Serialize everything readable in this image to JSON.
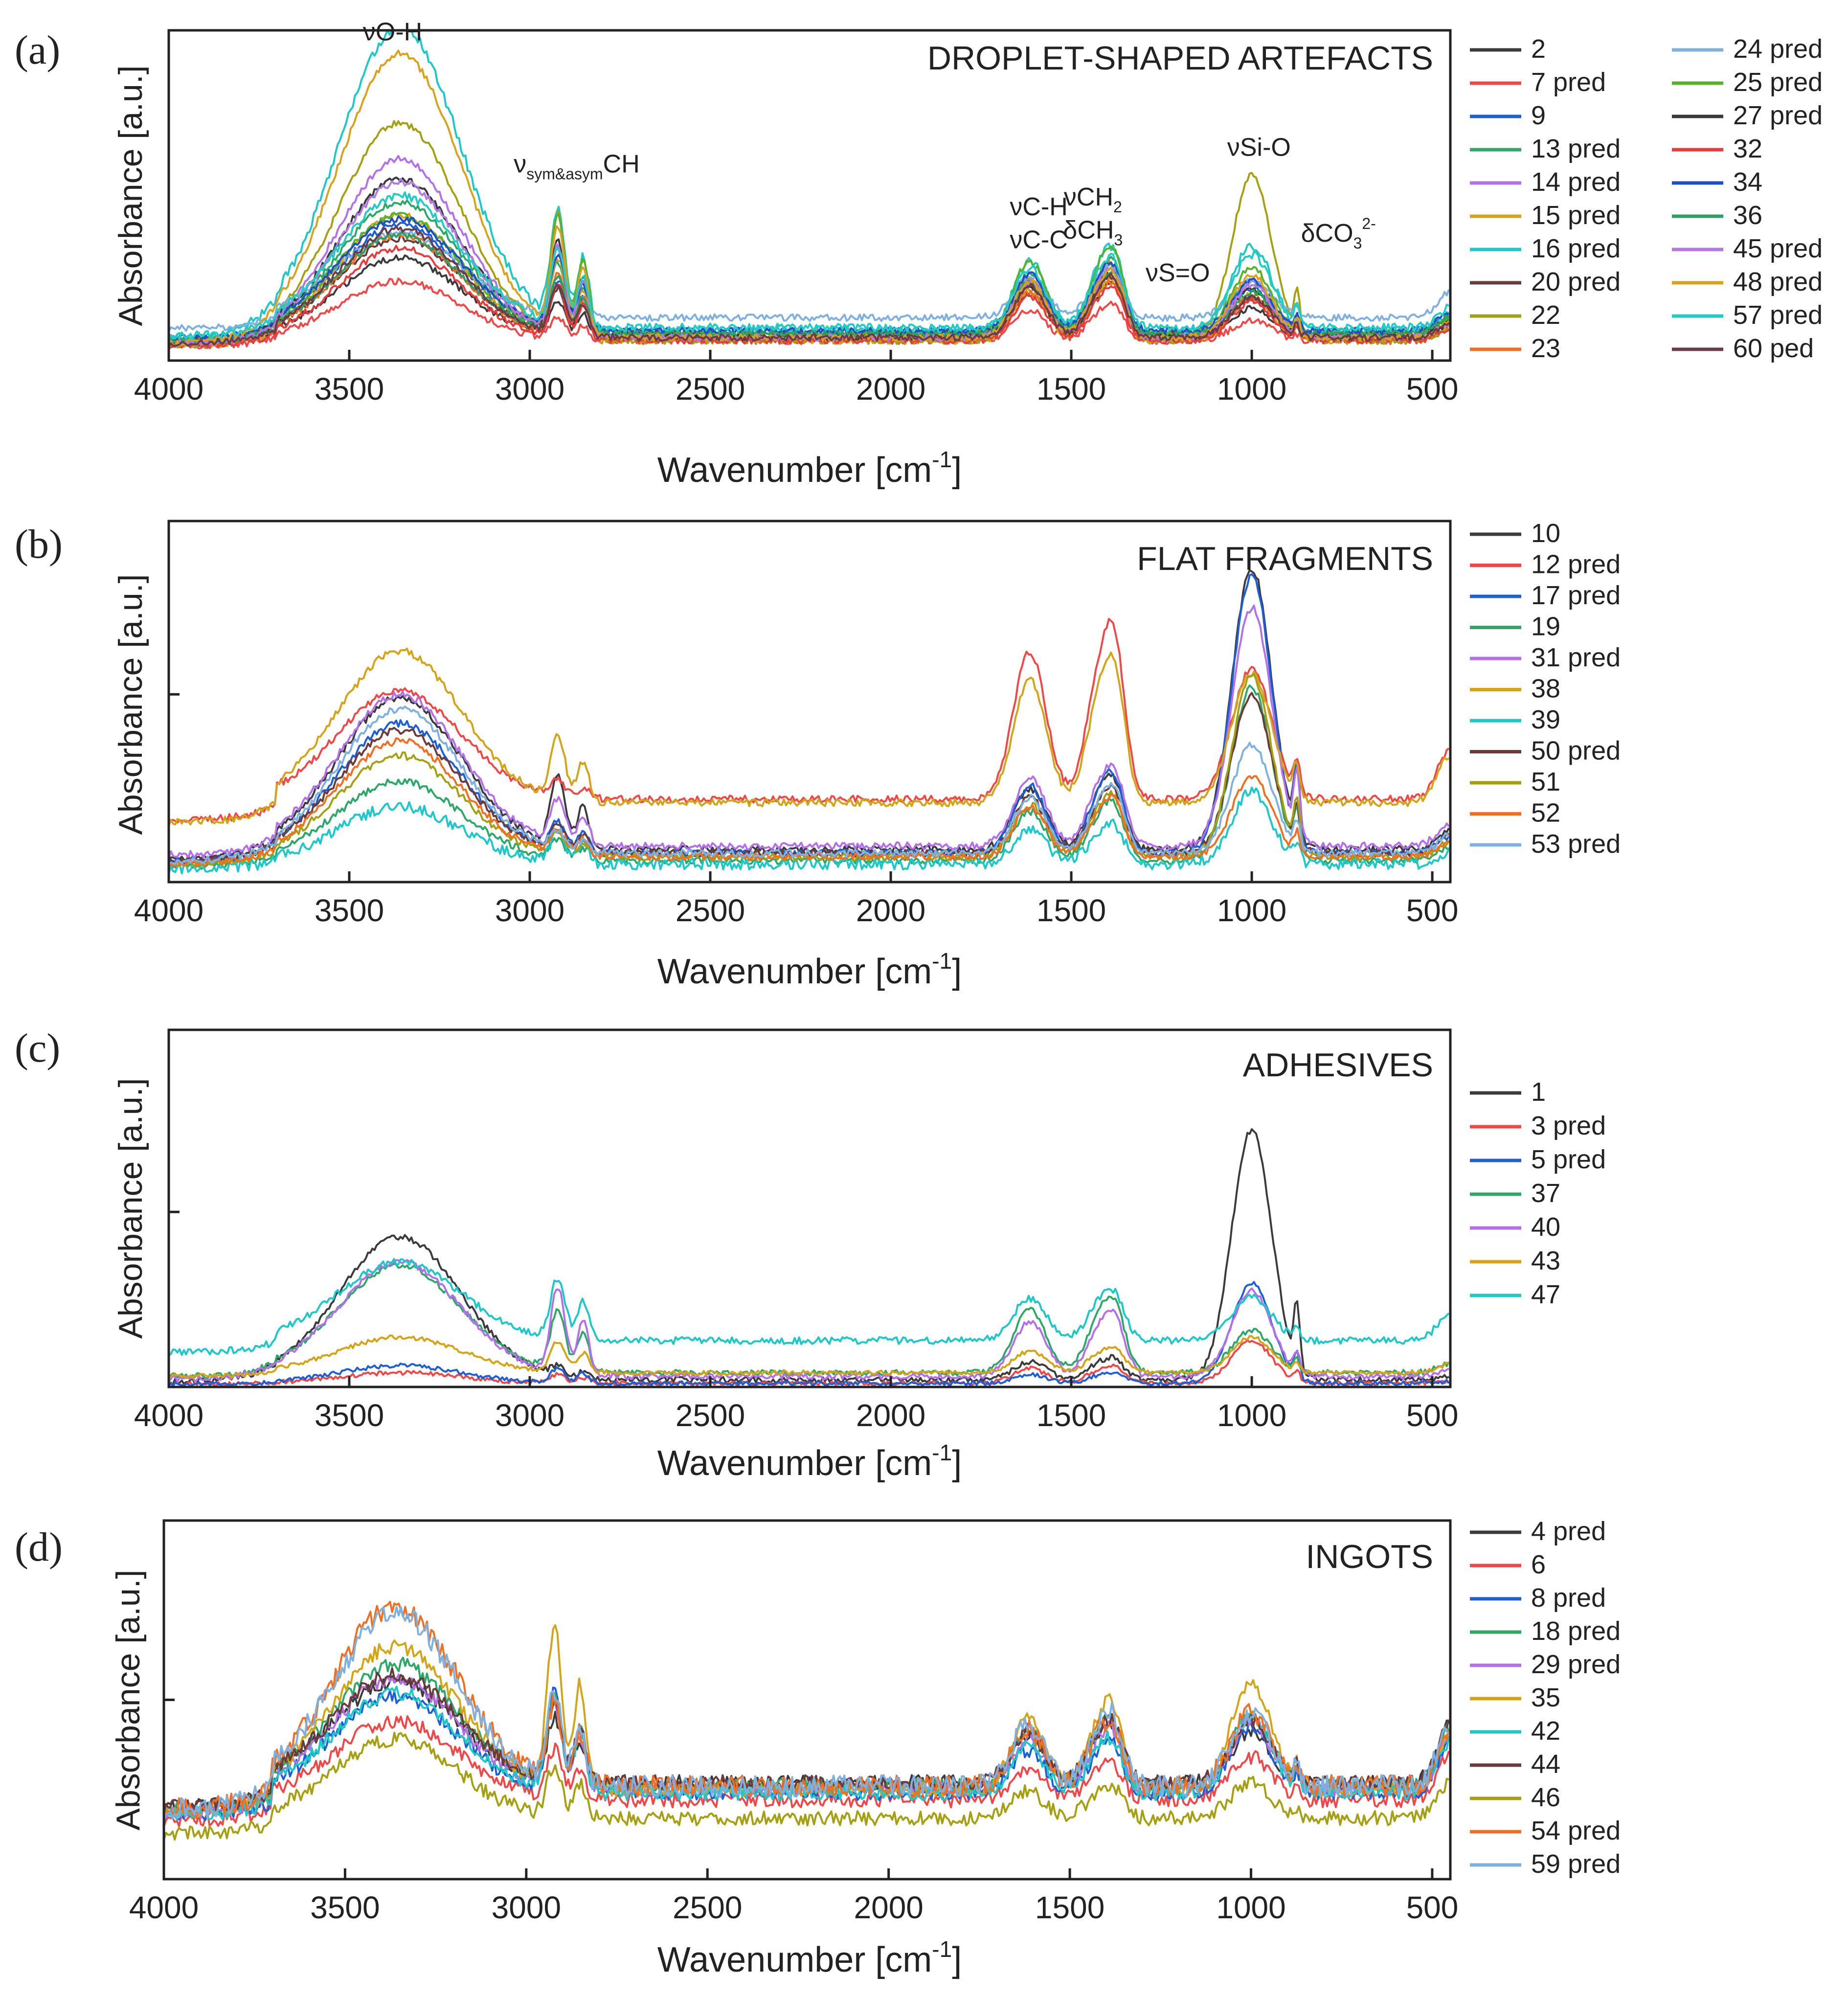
{
  "figure": {
    "background": "#ffffff"
  },
  "palette": [
    "#3b3b3b",
    "#f04848",
    "#1e5fd8",
    "#2ea868",
    "#b470e8",
    "#d4a418",
    "#1ec8c8",
    "#6b3a3a",
    "#a4a012",
    "#f06f22",
    "#7fb0e0",
    "#56b22c",
    "#38383a",
    "#e63c3c",
    "#1f4ec8",
    "#2ca060",
    "#b27ae0",
    "#d8a21c",
    "#24cbc2",
    "#6a3b48"
  ],
  "chart_data": [
    {
      "type": "line",
      "panel": "(a)",
      "title": "DROPLET-SHAPED ARTEFACTS",
      "xlabel": "Wavenumber [cm",
      "xlabel_sup": "-1",
      "xlabel_end": "]",
      "ylabel": "Absorbance [a.u.]",
      "xlim": [
        4000,
        450
      ],
      "ylim": [
        0,
        1
      ],
      "grid": false,
      "xticks": [
        {
          "v": 4000,
          "t": "4000"
        },
        {
          "v": 3500,
          "t": "3500"
        },
        {
          "v": 3000,
          "t": "3000"
        },
        {
          "v": 2500,
          "t": "2500"
        },
        {
          "v": 2000,
          "t": "2000"
        },
        {
          "v": 1500,
          "t": "1500"
        },
        {
          "v": 1000,
          "t": "1000"
        },
        {
          "v": 500,
          "t": "500"
        }
      ],
      "yticks": [],
      "legend": {
        "placement": "right",
        "columns": 2
      },
      "annotations": [
        {
          "id": "oh",
          "x": 3380,
          "y": 0.97,
          "parts": [
            {
              "t": "νO-H"
            }
          ]
        },
        {
          "id": "ch",
          "x": 2870,
          "y": 0.57,
          "parts": [
            {
              "t": "ν"
            },
            {
              "t": "sym&asym",
              "sub": true
            },
            {
              "t": "CH"
            }
          ]
        },
        {
          "id": "ch2",
          "x": 1590,
          "y": 0.44,
          "parts": [
            {
              "t": "νC-H"
            }
          ]
        },
        {
          "id": "cc",
          "x": 1590,
          "y": 0.34,
          "parts": [
            {
              "t": "νC-C"
            }
          ]
        },
        {
          "id": "ch2b",
          "x": 1440,
          "y": 0.47,
          "parts": [
            {
              "t": "νCH"
            },
            {
              "t": "2",
              "sub": true
            }
          ]
        },
        {
          "id": "ch3",
          "x": 1440,
          "y": 0.37,
          "parts": [
            {
              "t": "δCH"
            },
            {
              "t": "3",
              "sub": true
            }
          ]
        },
        {
          "id": "so",
          "x": 1205,
          "y": 0.24,
          "parts": [
            {
              "t": "νS=O"
            }
          ]
        },
        {
          "id": "sio",
          "x": 980,
          "y": 0.62,
          "parts": [
            {
              "t": "νSi-O"
            }
          ]
        },
        {
          "id": "co3",
          "x": 760,
          "y": 0.36,
          "parts": [
            {
              "t": "δCO"
            },
            {
              "t": "3",
              "sub": true
            },
            {
              "t": "2-",
              "sup": true
            }
          ]
        }
      ],
      "series": [
        {
          "name": "2",
          "base": 0.07,
          "oh": 0.24,
          "ch": 0.12,
          "amide": 0.16,
          "sio": 0.09,
          "noise": 0.01
        },
        {
          "name": "7 pred",
          "base": 0.06,
          "oh": 0.18,
          "ch": 0.08,
          "amide": 0.11,
          "sio": 0.06,
          "noise": 0.01
        },
        {
          "name": "9",
          "base": 0.09,
          "oh": 0.32,
          "ch": 0.17,
          "amide": 0.18,
          "sio": 0.13,
          "noise": 0.01
        },
        {
          "name": "13 pred",
          "base": 0.08,
          "oh": 0.4,
          "ch": 0.24,
          "amide": 0.22,
          "sio": 0.16,
          "noise": 0.01
        },
        {
          "name": "14 pred",
          "base": 0.07,
          "oh": 0.54,
          "ch": 0.3,
          "amide": 0.21,
          "sio": 0.17,
          "noise": 0.01
        },
        {
          "name": "15 pred",
          "base": 0.06,
          "oh": 0.38,
          "ch": 0.28,
          "amide": 0.18,
          "sio": 0.14,
          "noise": 0.01
        },
        {
          "name": "16 pred",
          "base": 0.09,
          "oh": 0.92,
          "ch": 0.39,
          "amide": 0.25,
          "sio": 0.26,
          "noise": 0.015
        },
        {
          "name": "20 pred",
          "base": 0.08,
          "oh": 0.29,
          "ch": 0.15,
          "amide": 0.17,
          "sio": 0.11,
          "noise": 0.01
        },
        {
          "name": "22",
          "base": 0.06,
          "oh": 0.66,
          "ch": 0.43,
          "amide": 0.23,
          "sio": 0.5,
          "noise": 0.01
        },
        {
          "name": "23",
          "base": 0.07,
          "oh": 0.31,
          "ch": 0.21,
          "amide": 0.16,
          "sio": 0.12,
          "noise": 0.01
        },
        {
          "name": "24 pred",
          "base": 0.13,
          "oh": 0.26,
          "ch": 0.1,
          "amide": 0.15,
          "sio": 0.11,
          "noise": 0.01
        },
        {
          "name": "25 pred",
          "base": 0.08,
          "oh": 0.36,
          "ch": 0.41,
          "amide": 0.26,
          "sio": 0.2,
          "noise": 0.01
        },
        {
          "name": "27 pred",
          "base": 0.07,
          "oh": 0.48,
          "ch": 0.33,
          "amide": 0.19,
          "sio": 0.15,
          "noise": 0.01
        },
        {
          "name": "32",
          "base": 0.06,
          "oh": 0.28,
          "ch": 0.19,
          "amide": 0.16,
          "sio": 0.12,
          "noise": 0.01
        },
        {
          "name": "34",
          "base": 0.09,
          "oh": 0.34,
          "ch": 0.26,
          "amide": 0.2,
          "sio": 0.15,
          "noise": 0.01
        },
        {
          "name": "36",
          "base": 0.08,
          "oh": 0.3,
          "ch": 0.2,
          "amide": 0.18,
          "sio": 0.13,
          "noise": 0.01
        },
        {
          "name": "45 pred",
          "base": 0.07,
          "oh": 0.47,
          "ch": 0.31,
          "amide": 0.2,
          "sio": 0.16,
          "noise": 0.01
        },
        {
          "name": "48 pred",
          "base": 0.07,
          "oh": 0.86,
          "ch": 0.36,
          "amide": 0.2,
          "sio": 0.19,
          "noise": 0.01
        },
        {
          "name": "57 pred",
          "base": 0.1,
          "oh": 0.4,
          "ch": 0.27,
          "amide": 0.21,
          "sio": 0.22,
          "noise": 0.012
        },
        {
          "name": "60 ped",
          "base": 0.07,
          "oh": 0.33,
          "ch": 0.18,
          "amide": 0.18,
          "sio": 0.12,
          "noise": 0.01
        }
      ]
    },
    {
      "type": "line",
      "panel": "(b)",
      "title": "FLAT FRAGMENTS",
      "xlabel": "Wavenumber [cm",
      "xlabel_sup": "-1",
      "xlabel_end": "]",
      "ylabel": "Absorbance [a.u.]",
      "xlim": [
        4000,
        450
      ],
      "ylim": [
        0,
        1
      ],
      "grid": false,
      "xticks": [
        {
          "v": 4000,
          "t": "4000"
        },
        {
          "v": 3500,
          "t": "3500"
        },
        {
          "v": 3000,
          "t": "3000"
        },
        {
          "v": 2500,
          "t": "2500"
        },
        {
          "v": 2000,
          "t": "2000"
        },
        {
          "v": 1500,
          "t": "1500"
        },
        {
          "v": 1000,
          "t": "1000"
        },
        {
          "v": 500,
          "t": "500"
        }
      ],
      "yticks": [
        {
          "v": 0.52,
          "t": ""
        }
      ],
      "legend": {
        "placement": "right",
        "columns": 1
      },
      "annotations": [],
      "series": [
        {
          "name": "10",
          "base": 0.09,
          "oh": 0.42,
          "ch": 0.22,
          "amide": 0.2,
          "sio": 0.78,
          "noise": 0.01
        },
        {
          "name": "12 pred",
          "base": 0.23,
          "oh": 0.3,
          "ch": 0.05,
          "amide": 0.48,
          "sio": 0.36,
          "noise": 0.01
        },
        {
          "name": "17 pred",
          "base": 0.08,
          "oh": 0.36,
          "ch": 0.09,
          "amide": 0.22,
          "sio": 0.77,
          "noise": 0.01
        },
        {
          "name": "19",
          "base": 0.06,
          "oh": 0.22,
          "ch": 0.06,
          "amide": 0.16,
          "sio": 0.48,
          "noise": 0.01
        },
        {
          "name": "31 pred",
          "base": 0.1,
          "oh": 0.42,
          "ch": 0.14,
          "amide": 0.22,
          "sio": 0.66,
          "noise": 0.01
        },
        {
          "name": "38",
          "base": 0.22,
          "oh": 0.42,
          "ch": 0.2,
          "amide": 0.4,
          "sio": 0.36,
          "noise": 0.01
        },
        {
          "name": "39",
          "base": 0.05,
          "oh": 0.16,
          "ch": 0.1,
          "amide": 0.11,
          "sio": 0.2,
          "noise": 0.015
        },
        {
          "name": "50 pred",
          "base": 0.08,
          "oh": 0.34,
          "ch": 0.08,
          "amide": 0.18,
          "sio": 0.44,
          "noise": 0.01
        },
        {
          "name": "51",
          "base": 0.07,
          "oh": 0.28,
          "ch": 0.07,
          "amide": 0.17,
          "sio": 0.5,
          "noise": 0.01
        },
        {
          "name": "52",
          "base": 0.07,
          "oh": 0.32,
          "ch": 0.08,
          "amide": 0.16,
          "sio": 0.22,
          "noise": 0.01
        },
        {
          "name": "53 pred",
          "base": 0.08,
          "oh": 0.4,
          "ch": 0.06,
          "amide": 0.18,
          "sio": 0.3,
          "noise": 0.01
        }
      ]
    },
    {
      "type": "line",
      "panel": "(c)",
      "title": "ADHESIVES",
      "xlabel": "Wavenumber [cm",
      "xlabel_sup": "-1",
      "xlabel_end": "]",
      "ylabel": "Absorbance [a.u.]",
      "xlim": [
        4000,
        450
      ],
      "ylim": [
        0,
        1
      ],
      "grid": false,
      "xticks": [
        {
          "v": 4000,
          "t": "4000"
        },
        {
          "v": 3500,
          "t": "3500"
        },
        {
          "v": 3000,
          "t": "3000"
        },
        {
          "v": 2500,
          "t": "2500"
        },
        {
          "v": 2000,
          "t": "2000"
        },
        {
          "v": 1500,
          "t": "1500"
        },
        {
          "v": 1000,
          "t": "1000"
        },
        {
          "v": 500,
          "t": "500"
        }
      ],
      "yticks": [
        {
          "v": 0.49,
          "t": ""
        }
      ],
      "legend": {
        "placement": "right",
        "columns": 1
      },
      "annotations": [],
      "series": [
        {
          "name": "1",
          "base": 0.02,
          "oh": 0.4,
          "ch": 0.03,
          "amide": 0.06,
          "sio": 0.7,
          "noise": 0.008
        },
        {
          "name": "3 pred",
          "base": 0.01,
          "oh": 0.03,
          "ch": 0.03,
          "amide": 0.05,
          "sio": 0.12,
          "noise": 0.006
        },
        {
          "name": "5 pred",
          "base": 0.01,
          "oh": 0.05,
          "ch": 0.05,
          "amide": 0.03,
          "sio": 0.28,
          "noise": 0.006
        },
        {
          "name": "37",
          "base": 0.04,
          "oh": 0.3,
          "ch": 0.2,
          "amide": 0.21,
          "sio": 0.12,
          "noise": 0.008
        },
        {
          "name": "40",
          "base": 0.03,
          "oh": 0.32,
          "ch": 0.28,
          "amide": 0.18,
          "sio": 0.24,
          "noise": 0.008
        },
        {
          "name": "43",
          "base": 0.04,
          "oh": 0.1,
          "ch": 0.1,
          "amide": 0.07,
          "sio": 0.1,
          "noise": 0.006
        },
        {
          "name": "47",
          "base": 0.13,
          "oh": 0.22,
          "ch": 0.2,
          "amide": 0.14,
          "sio": 0.12,
          "noise": 0.01
        }
      ]
    },
    {
      "type": "line",
      "panel": "(d)",
      "title": "INGOTS",
      "xlabel": "Wavenumber [cm",
      "xlabel_sup": "-1",
      "xlabel_end": "]",
      "ylabel": "Absorbance [a.u.]",
      "xlim": [
        4000,
        450
      ],
      "ylim": [
        0,
        1
      ],
      "grid": false,
      "xticks": [
        {
          "v": 4000,
          "t": "4000"
        },
        {
          "v": 3500,
          "t": "3500"
        },
        {
          "v": 3000,
          "t": "3000"
        },
        {
          "v": 2500,
          "t": "2500"
        },
        {
          "v": 2000,
          "t": "2000"
        },
        {
          "v": 1500,
          "t": "1500"
        },
        {
          "v": 1000,
          "t": "1000"
        },
        {
          "v": 500,
          "t": "500"
        }
      ],
      "yticks": [
        {
          "v": 0.5,
          "t": ""
        }
      ],
      "legend": {
        "placement": "right",
        "columns": 1
      },
      "annotations": [],
      "series": [
        {
          "name": "4 pred",
          "base": 0.27,
          "oh": 0.28,
          "ch": 0.2,
          "amide": 0.16,
          "sio": 0.14,
          "noise": 0.02
        },
        {
          "name": "6",
          "base": 0.22,
          "oh": 0.22,
          "ch": 0.16,
          "amide": 0.1,
          "sio": 0.12,
          "noise": 0.02
        },
        {
          "name": "8 pred",
          "base": 0.24,
          "oh": 0.27,
          "ch": 0.32,
          "amide": 0.14,
          "sio": 0.18,
          "noise": 0.02
        },
        {
          "name": "18 pred",
          "base": 0.26,
          "oh": 0.34,
          "ch": 0.28,
          "amide": 0.18,
          "sio": 0.2,
          "noise": 0.02
        },
        {
          "name": "29 pred",
          "base": 0.25,
          "oh": 0.31,
          "ch": 0.27,
          "amide": 0.17,
          "sio": 0.19,
          "noise": 0.02
        },
        {
          "name": "35",
          "base": 0.25,
          "oh": 0.4,
          "ch": 0.52,
          "amide": 0.24,
          "sio": 0.3,
          "noise": 0.02
        },
        {
          "name": "42",
          "base": 0.24,
          "oh": 0.28,
          "ch": 0.3,
          "amide": 0.15,
          "sio": 0.22,
          "noise": 0.02
        },
        {
          "name": "44",
          "base": 0.27,
          "oh": 0.3,
          "ch": 0.26,
          "amide": 0.17,
          "sio": 0.17,
          "noise": 0.02
        },
        {
          "name": "46",
          "base": 0.17,
          "oh": 0.22,
          "ch": 0.17,
          "amide": 0.09,
          "sio": 0.1,
          "noise": 0.02
        },
        {
          "name": "54 pred",
          "base": 0.26,
          "oh": 0.5,
          "ch": 0.26,
          "amide": 0.18,
          "sio": 0.2,
          "noise": 0.03
        },
        {
          "name": "59 pred",
          "base": 0.26,
          "oh": 0.48,
          "ch": 0.28,
          "amide": 0.2,
          "sio": 0.2,
          "noise": 0.03
        }
      ]
    }
  ]
}
